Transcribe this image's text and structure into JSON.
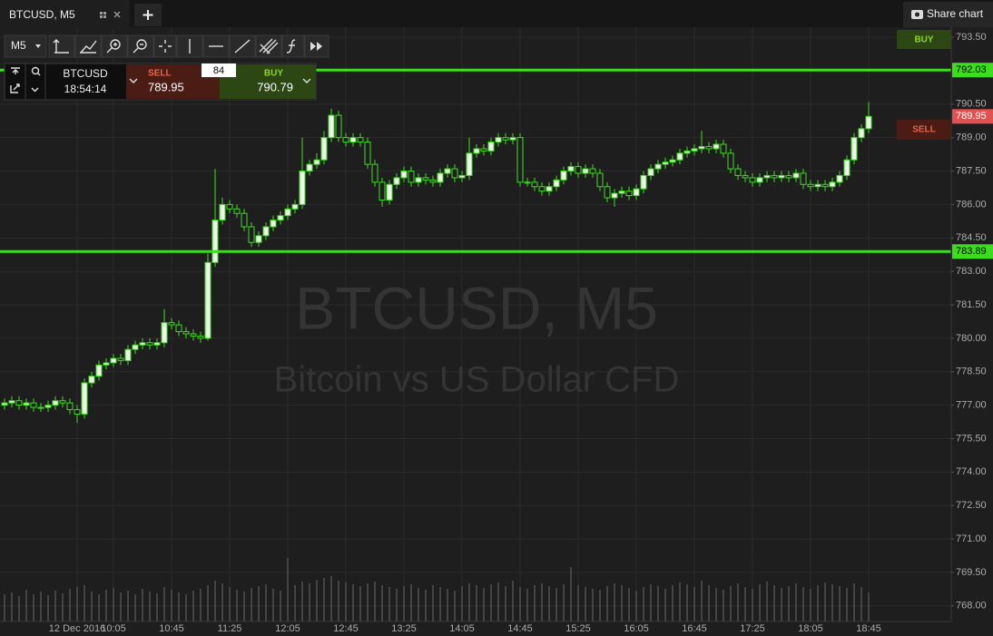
{
  "ui": {
    "tab": "BTCUSD, M5",
    "share": "Share chart",
    "timeframe": "M5",
    "widget": {
      "symbol": "BTCUSD",
      "time": "18:54:14",
      "sell_label": "SELL",
      "sell_price": "789.95",
      "spread": "84",
      "buy_label": "BUY",
      "buy_price": "790.79"
    },
    "side_buy": "BUY",
    "side_sell": "SELL"
  },
  "chart_data": {
    "type": "candlestick",
    "title": "BTCUSD, M5",
    "subtitle": "Bitcoin vs US Dollar CFD",
    "categories": [
      null,
      null,
      null,
      null,
      null,
      null,
      null,
      null,
      null,
      null,
      "12 Dec 2016",
      null,
      null,
      null,
      null,
      "10:05",
      null,
      null,
      null,
      null,
      null,
      null,
      null,
      "10:45",
      null,
      null,
      null,
      null,
      null,
      null,
      null,
      "11:25",
      null,
      null,
      null,
      null,
      null,
      null,
      null,
      "12:05",
      null,
      null,
      null,
      null,
      null,
      null,
      null,
      "12:45",
      null,
      null,
      null,
      null,
      null,
      null,
      null,
      "13:25",
      null,
      null,
      null,
      null,
      null,
      null,
      null,
      "14:05",
      null,
      null,
      null,
      null,
      null,
      null,
      null,
      "14:45",
      null,
      null,
      null,
      null,
      null,
      null,
      null,
      "15:25",
      null,
      null,
      null,
      null,
      null,
      null,
      null,
      "16:05",
      null,
      null,
      null,
      null,
      null,
      null,
      null,
      "16:45",
      null,
      null,
      null,
      null,
      null,
      null,
      null,
      "17:25",
      null,
      null,
      null,
      null,
      null,
      null,
      null,
      "18:05",
      null,
      null,
      null,
      null,
      null,
      null,
      null,
      "18:45"
    ],
    "open": [
      777.0,
      777.1,
      777.2,
      777.0,
      777.1,
      776.9,
      776.9,
      777.0,
      777.2,
      777.1,
      776.8,
      776.6,
      778.0,
      778.3,
      778.8,
      778.9,
      779.1,
      779.0,
      779.5,
      779.7,
      779.8,
      779.7,
      779.8,
      780.7,
      780.6,
      780.3,
      780.2,
      780.1,
      780.0,
      783.4,
      785.3,
      786.0,
      785.8,
      785.6,
      785.0,
      784.3,
      784.6,
      785.0,
      785.3,
      785.5,
      785.8,
      786.0,
      787.5,
      787.8,
      788.0,
      789.0,
      790.0,
      789.0,
      788.8,
      789.0,
      788.8,
      787.8,
      787.0,
      786.2,
      786.9,
      787.2,
      787.5,
      787.0,
      787.2,
      787.1,
      787.0,
      787.4,
      787.6,
      787.2,
      787.3,
      788.3,
      788.5,
      788.4,
      788.8,
      789.0,
      788.9,
      789.0,
      787.0,
      787.0,
      786.8,
      786.6,
      786.8,
      787.1,
      787.5,
      787.7,
      787.4,
      787.6,
      787.4,
      786.8,
      786.3,
      786.5,
      786.6,
      786.4,
      786.7,
      787.3,
      787.6,
      787.8,
      787.9,
      788.0,
      788.3,
      788.4,
      788.5,
      788.6,
      788.5,
      788.7,
      788.3,
      787.6,
      787.3,
      787.2,
      787.0,
      787.2,
      787.3,
      787.2,
      787.3,
      787.2,
      787.4,
      786.9,
      786.8,
      786.9,
      786.8,
      787.0,
      787.3,
      788.0,
      789.0,
      789.4
    ],
    "high": [
      777.3,
      777.4,
      777.4,
      777.3,
      777.3,
      777.1,
      777.2,
      777.4,
      777.4,
      777.3,
      777.0,
      778.2,
      778.5,
      779.0,
      779.1,
      779.3,
      779.3,
      779.7,
      779.9,
      780.0,
      780.0,
      780.0,
      781.3,
      780.9,
      780.8,
      780.5,
      780.4,
      780.3,
      783.8,
      787.6,
      786.3,
      786.2,
      786.0,
      785.8,
      785.2,
      784.8,
      785.2,
      785.5,
      785.7,
      786.0,
      786.2,
      789.0,
      788.0,
      788.3,
      789.3,
      790.3,
      790.2,
      789.2,
      789.2,
      789.2,
      789.0,
      788.0,
      787.2,
      787.1,
      787.4,
      787.7,
      787.7,
      787.4,
      787.4,
      787.3,
      787.6,
      787.8,
      787.8,
      787.5,
      789.0,
      788.7,
      788.7,
      789.0,
      789.2,
      789.2,
      789.2,
      789.2,
      787.2,
      787.2,
      787.0,
      787.0,
      787.3,
      787.7,
      787.9,
      787.9,
      787.8,
      787.8,
      787.6,
      787.0,
      786.7,
      786.8,
      786.8,
      786.9,
      787.5,
      787.8,
      788.0,
      788.1,
      788.2,
      788.5,
      788.6,
      788.7,
      789.3,
      788.8,
      788.9,
      788.9,
      788.5,
      787.8,
      787.5,
      787.4,
      787.4,
      787.5,
      787.5,
      787.5,
      787.5,
      787.6,
      787.6,
      787.1,
      787.1,
      787.1,
      787.2,
      787.5,
      788.2,
      789.2,
      789.6,
      790.6
    ],
    "low": [
      776.8,
      776.9,
      776.8,
      776.8,
      776.7,
      776.7,
      776.7,
      776.8,
      776.9,
      776.6,
      776.2,
      776.4,
      777.8,
      778.1,
      778.6,
      778.7,
      778.8,
      778.8,
      779.3,
      779.5,
      779.5,
      779.5,
      779.6,
      780.4,
      780.1,
      780.0,
      779.9,
      779.8,
      779.9,
      783.2,
      785.1,
      785.6,
      785.4,
      784.8,
      784.1,
      784.1,
      784.4,
      784.8,
      785.1,
      785.3,
      785.6,
      785.8,
      787.3,
      787.6,
      787.8,
      788.8,
      788.8,
      788.6,
      788.6,
      788.6,
      787.6,
      786.8,
      785.9,
      786.0,
      786.7,
      787.0,
      786.8,
      786.8,
      786.9,
      786.8,
      786.8,
      787.2,
      787.0,
      787.0,
      787.1,
      788.1,
      788.2,
      788.2,
      788.6,
      788.7,
      788.7,
      786.8,
      786.8,
      786.6,
      786.4,
      786.4,
      786.6,
      786.9,
      787.3,
      787.2,
      787.2,
      787.2,
      786.6,
      786.1,
      785.9,
      786.3,
      786.2,
      786.2,
      786.5,
      787.1,
      787.4,
      787.6,
      787.7,
      787.8,
      788.1,
      788.2,
      788.3,
      788.3,
      788.3,
      788.1,
      787.4,
      787.1,
      787.0,
      786.8,
      786.8,
      787.0,
      787.0,
      787.0,
      787.0,
      787.0,
      786.7,
      786.6,
      786.6,
      786.6,
      786.6,
      786.8,
      787.1,
      787.8,
      788.8,
      789.2
    ],
    "close": [
      777.1,
      777.2,
      777.0,
      777.1,
      776.9,
      776.9,
      777.0,
      777.2,
      777.1,
      776.8,
      776.6,
      778.0,
      778.3,
      778.8,
      778.9,
      779.1,
      779.0,
      779.5,
      779.7,
      779.8,
      779.7,
      779.8,
      780.7,
      780.6,
      780.3,
      780.2,
      780.1,
      780.0,
      783.4,
      785.3,
      786.0,
      785.8,
      785.6,
      785.0,
      784.3,
      784.6,
      785.0,
      785.3,
      785.5,
      785.8,
      786.0,
      787.5,
      787.8,
      788.0,
      789.0,
      790.0,
      789.0,
      788.8,
      789.0,
      788.8,
      787.8,
      787.0,
      786.2,
      786.9,
      787.2,
      787.5,
      787.0,
      787.2,
      787.1,
      787.0,
      787.4,
      787.6,
      787.2,
      787.3,
      788.3,
      788.5,
      788.4,
      788.8,
      789.0,
      788.9,
      789.0,
      787.0,
      787.0,
      786.8,
      786.6,
      786.8,
      787.1,
      787.5,
      787.7,
      787.4,
      787.6,
      787.4,
      786.8,
      786.3,
      786.5,
      786.6,
      786.4,
      786.7,
      787.3,
      787.6,
      787.8,
      787.9,
      788.0,
      788.3,
      788.4,
      788.5,
      788.6,
      788.5,
      788.7,
      788.3,
      787.6,
      787.3,
      787.2,
      787.0,
      787.2,
      787.3,
      787.2,
      787.3,
      787.2,
      787.4,
      786.9,
      786.8,
      786.9,
      786.8,
      787.0,
      787.3,
      788.0,
      789.0,
      789.4,
      789.95
    ],
    "volume": [
      30,
      32,
      28,
      35,
      30,
      33,
      29,
      34,
      31,
      36,
      38,
      40,
      33,
      30,
      35,
      37,
      32,
      34,
      30,
      36,
      33,
      31,
      38,
      35,
      32,
      30,
      34,
      36,
      40,
      45,
      42,
      38,
      35,
      33,
      37,
      39,
      41,
      36,
      34,
      70,
      40,
      44,
      42,
      46,
      48,
      50,
      45,
      43,
      41,
      39,
      42,
      44,
      40,
      38,
      36,
      39,
      41,
      37,
      35,
      40,
      38,
      36,
      34,
      39,
      42,
      40,
      37,
      41,
      43,
      39,
      45,
      38,
      36,
      40,
      42,
      39,
      37,
      41,
      60,
      40,
      38,
      36,
      35,
      39,
      42,
      40,
      37,
      34,
      38,
      41,
      39,
      36,
      40,
      43,
      41,
      38,
      45,
      40,
      37,
      35,
      39,
      42,
      38,
      36,
      41,
      44,
      40,
      37,
      39,
      42,
      38,
      36,
      40,
      43,
      41,
      39,
      37,
      42,
      38,
      32
    ],
    "ylim": [
      767.3,
      793.95
    ],
    "yticks": [
      {
        "value": 768,
        "label": "768.00"
      },
      {
        "value": 769.5,
        "label": "769.50"
      },
      {
        "value": 771,
        "label": "771.00"
      },
      {
        "value": 772.5,
        "label": "772.50"
      },
      {
        "value": 774,
        "label": "774.00"
      },
      {
        "value": 775.5,
        "label": "775.50"
      },
      {
        "value": 777,
        "label": "777.00"
      },
      {
        "value": 778.5,
        "label": "778.50"
      },
      {
        "value": 780,
        "label": "780.00"
      },
      {
        "value": 781.5,
        "label": "781.50"
      },
      {
        "value": 783,
        "label": "783.00"
      },
      {
        "value": 784.5,
        "label": "784.50"
      },
      {
        "value": 786,
        "label": "786.00"
      },
      {
        "value": 787.5,
        "label": "787.50"
      },
      {
        "value": 789,
        "label": "789.00"
      },
      {
        "value": 790.5,
        "label": "790.50"
      },
      {
        "value": 793.5,
        "label": "793.50"
      }
    ],
    "levels": [
      792.03,
      783.89
    ],
    "level_color": "#3ddc1e",
    "last_price": 789.95,
    "last_price_color": "#e25050",
    "up_color": "#e9f7e4",
    "down_color": "#1e1e1e",
    "candle_outline": "#3ddc1e",
    "volume_color": "#6a6a6a",
    "grid": true
  }
}
